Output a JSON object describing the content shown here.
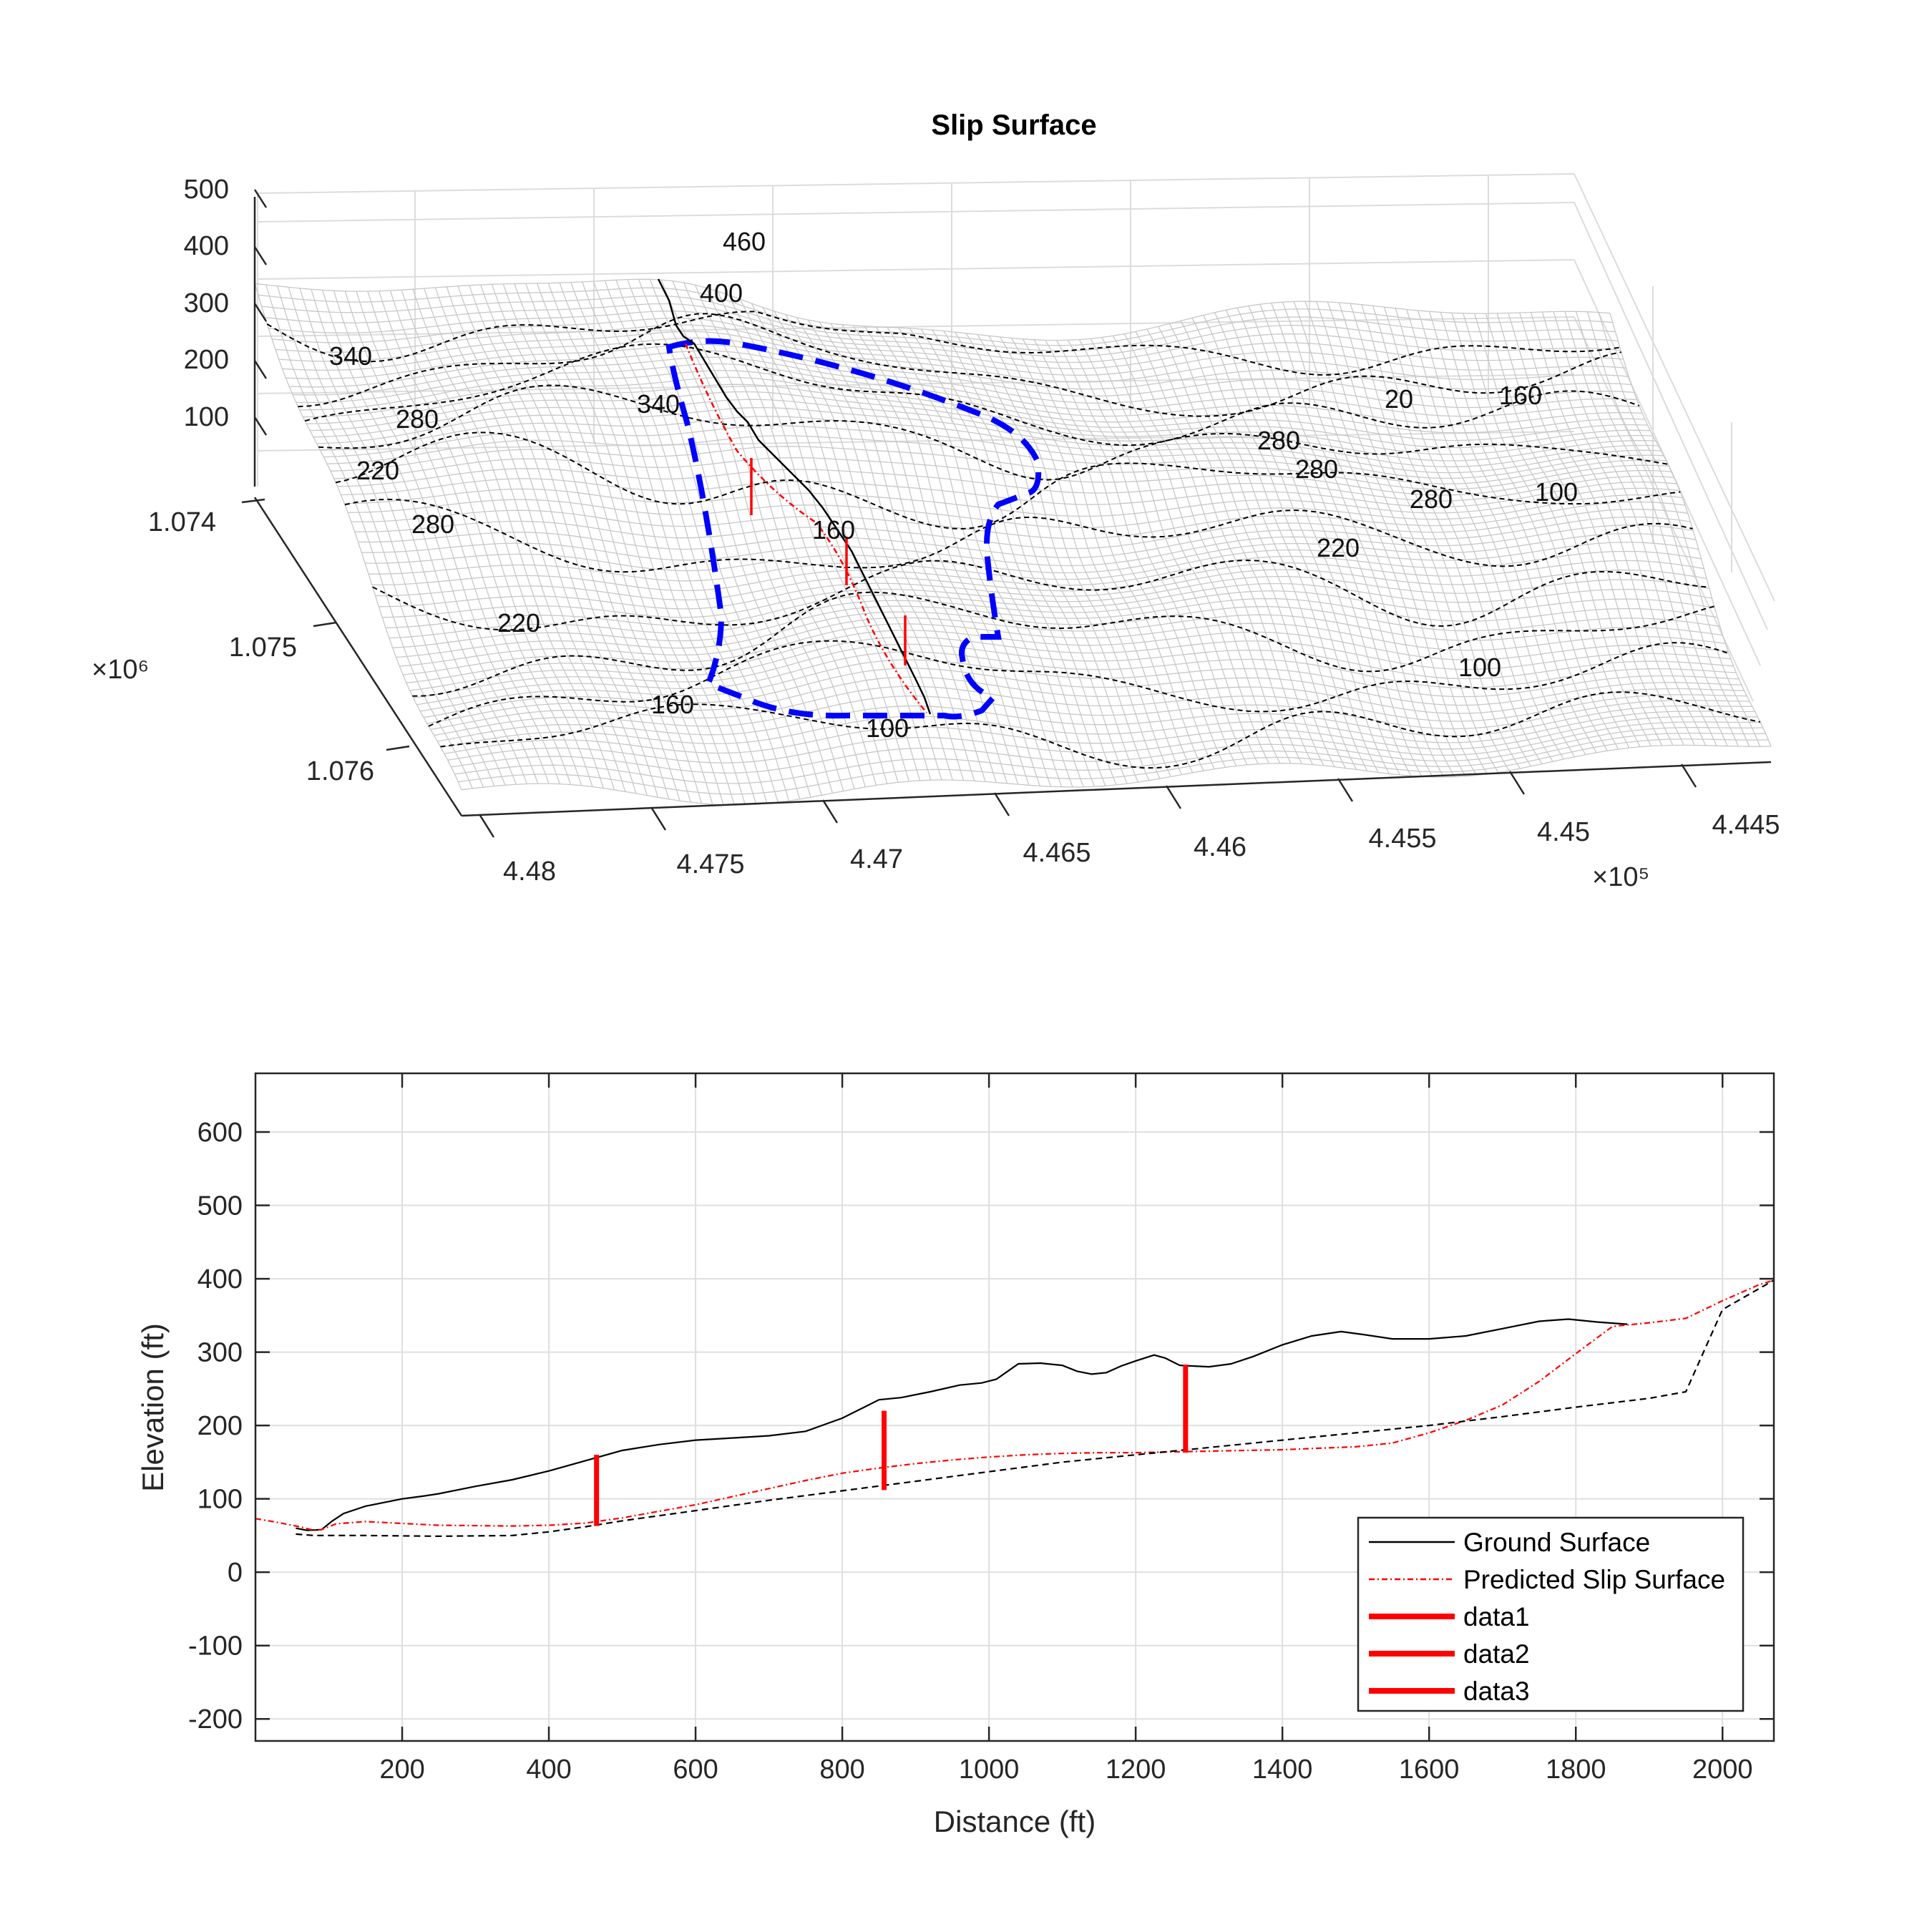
{
  "chart_data": [
    {
      "type": "surface",
      "title": "Slip Surface",
      "x_ticks": [
        "4.48",
        "4.475",
        "4.47",
        "4.465",
        "4.46",
        "4.455",
        "4.45",
        "4.445"
      ],
      "x_exponent": "×10⁵",
      "y_ticks": [
        "1.074",
        "1.075",
        "1.076"
      ],
      "y_exponent": "×10⁶",
      "z_ticks": [
        "500",
        "400",
        "300",
        "200",
        "100"
      ],
      "contour_labels": [
        "460",
        "400",
        "340",
        "340",
        "280",
        "280",
        "220",
        "220",
        "160",
        "160",
        "100",
        "20",
        "160",
        "280",
        "280",
        "220",
        "100",
        "280",
        "100"
      ],
      "surface_color": "#c8c8c8",
      "contour_color": "#000000",
      "boundary_color": "#0000ff",
      "slip_color": "#ff0000"
    },
    {
      "type": "line",
      "xlabel": "Distance (ft)",
      "ylabel": "Elevation (ft)",
      "xlim": [
        0,
        2070
      ],
      "ylim": [
        -230,
        680
      ],
      "x_ticks": [
        200,
        400,
        600,
        800,
        1000,
        1200,
        1400,
        1600,
        1800,
        2000
      ],
      "y_ticks": [
        -200,
        -100,
        0,
        100,
        200,
        300,
        400,
        500,
        600
      ],
      "grid": true,
      "legend_position": "bottom-right",
      "series": [
        {
          "name": "Ground Surface",
          "color": "#000000",
          "style": "solid",
          "x": [
            55,
            70,
            90,
            105,
            120,
            150,
            200,
            230,
            250,
            300,
            350,
            400,
            450,
            500,
            550,
            600,
            650,
            700,
            750,
            800,
            830,
            850,
            880,
            920,
            960,
            990,
            1010,
            1040,
            1070,
            1100,
            1120,
            1140,
            1160,
            1180,
            1200,
            1225,
            1240,
            1260,
            1300,
            1330,
            1360,
            1400,
            1440,
            1480,
            1510,
            1550,
            1600,
            1650,
            1700,
            1750,
            1790,
            1830,
            1870
          ],
          "y": [
            60,
            57,
            58,
            70,
            80,
            90,
            100,
            104,
            107,
            117,
            126,
            138,
            152,
            166,
            174,
            180,
            183,
            186,
            192,
            210,
            225,
            235,
            238,
            246,
            255,
            258,
            263,
            284,
            285,
            282,
            274,
            270,
            272,
            281,
            288,
            296,
            292,
            282,
            280,
            284,
            294,
            310,
            322,
            328,
            324,
            318,
            318,
            322,
            332,
            342,
            345,
            341,
            338
          ]
        },
        {
          "name": "Predicted Slip Surface",
          "color": "#ff0000",
          "style": "dashdot",
          "x": [
            0,
            30,
            60,
            80,
            90,
            110,
            150,
            250,
            350,
            400,
            450,
            500,
            550,
            600,
            650,
            700,
            750,
            800,
            850,
            900,
            950,
            1000,
            1050,
            1100,
            1150,
            1200,
            1250,
            1300,
            1350,
            1400,
            1450,
            1500,
            1550,
            1600,
            1650,
            1700,
            1750,
            1800,
            1850,
            1900,
            1950,
            2000,
            2050,
            2070
          ],
          "y": [
            73,
            68,
            62,
            57,
            58,
            66,
            69,
            64,
            63,
            64,
            67,
            74,
            83,
            92,
            103,
            114,
            125,
            135,
            142,
            148,
            153,
            157,
            160,
            162,
            163,
            163,
            164,
            165,
            166,
            167,
            169,
            171,
            176,
            190,
            207,
            228,
            260,
            298,
            335,
            340,
            346,
            370,
            392,
            398
          ]
        },
        {
          "name": "",
          "color": "#000000",
          "style": "dashed",
          "x": [
            55,
            80,
            150,
            250,
            350,
            400,
            450,
            500,
            600,
            700,
            800,
            900,
            1000,
            1100,
            1200,
            1300,
            1400,
            1500,
            1600,
            1700,
            1800,
            1900,
            1950,
            2000,
            2070
          ],
          "y": [
            52,
            50,
            50,
            49,
            50,
            55,
            62,
            70,
            84,
            98,
            111,
            124,
            137,
            150,
            160,
            170,
            180,
            190,
            200,
            212,
            225,
            237,
            246,
            358,
            398
          ]
        }
      ],
      "bars": [
        {
          "name": "data1",
          "x": 465,
          "y_bottom": 63,
          "y_top": 160,
          "color": "#ff0000"
        },
        {
          "name": "data2",
          "x": 857,
          "y_bottom": 112,
          "y_top": 220,
          "color": "#ff0000"
        },
        {
          "name": "data3",
          "x": 1268,
          "y_bottom": 163,
          "y_top": 283,
          "color": "#ff0000"
        }
      ]
    }
  ]
}
